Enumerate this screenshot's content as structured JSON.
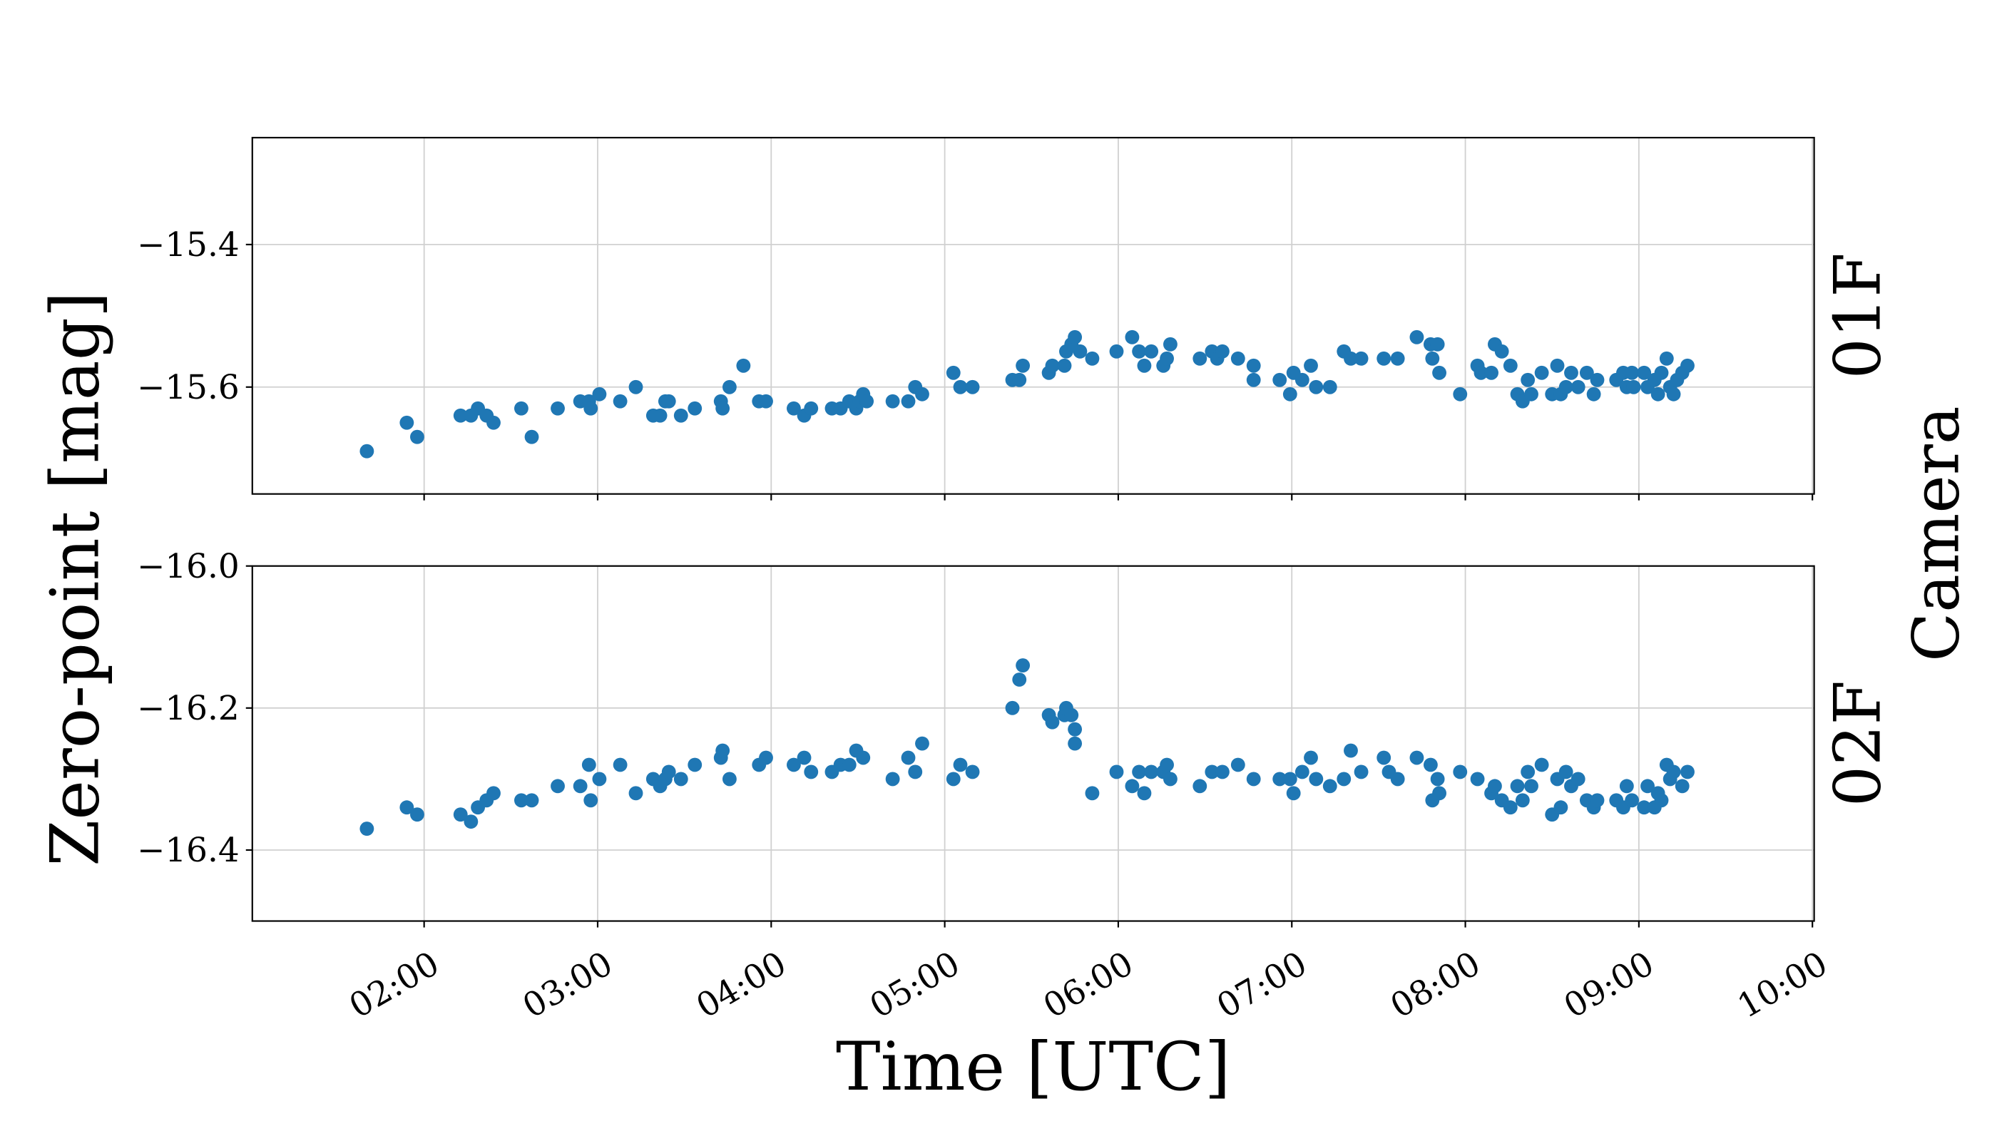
{
  "shared": {
    "xlabel": "Time [UTC]",
    "ylabel": "Zero-point [mag]",
    "facet_title": "Camera"
  },
  "chart_data": [
    {
      "type": "scatter",
      "facet_label": "01F",
      "color": "#1f77b4",
      "grid": true,
      "xlim": [
        1.01,
        10.01
      ],
      "xticks": [
        2,
        3,
        4,
        5,
        6,
        7,
        8,
        9,
        10
      ],
      "ylim": [
        -15.75,
        -15.25
      ],
      "yticks": [
        {
          "value": -15.4,
          "label": "−15.4"
        },
        {
          "value": -15.6,
          "label": "−15.6"
        }
      ],
      "x": [
        1.67,
        1.9,
        1.96,
        2.21,
        2.27,
        2.31,
        2.36,
        2.4,
        2.56,
        2.62,
        2.77,
        2.9,
        2.95,
        2.96,
        3.01,
        3.13,
        3.22,
        3.32,
        3.36,
        3.39,
        3.41,
        3.48,
        3.56,
        3.71,
        3.72,
        3.76,
        3.84,
        3.93,
        3.97,
        4.13,
        4.19,
        4.23,
        4.35,
        4.4,
        4.45,
        4.49,
        4.51,
        4.53,
        4.55,
        4.7,
        4.79,
        4.83,
        4.87,
        5.05,
        5.09,
        5.16,
        5.39,
        5.43,
        5.45,
        5.6,
        5.62,
        5.69,
        5.7,
        5.73,
        5.75,
        5.78,
        5.85,
        5.99,
        6.08,
        6.12,
        6.15,
        6.19,
        6.26,
        6.28,
        6.3,
        6.47,
        6.54,
        6.57,
        6.6,
        6.69,
        6.78,
        6.78,
        6.93,
        6.99,
        7.01,
        7.06,
        7.11,
        7.14,
        7.22,
        7.3,
        7.34,
        7.4,
        7.53,
        7.61,
        7.72,
        7.8,
        7.81,
        7.84,
        7.85,
        7.97,
        8.07,
        8.09,
        8.15,
        8.17,
        8.21,
        8.26,
        8.3,
        8.33,
        8.36,
        8.38,
        8.44,
        8.5,
        8.53,
        8.55,
        8.58,
        8.61,
        8.65,
        8.7,
        8.74,
        8.76,
        8.87,
        8.91,
        8.93,
        8.96,
        8.97,
        9.03,
        9.05,
        9.09,
        9.11,
        9.13,
        9.16,
        9.18,
        9.2,
        9.22,
        9.25,
        9.28
      ],
      "values": [
        -15.69,
        -15.65,
        -15.67,
        -15.64,
        -15.64,
        -15.63,
        -15.64,
        -15.65,
        -15.63,
        -15.67,
        -15.63,
        -15.62,
        -15.62,
        -15.63,
        -15.61,
        -15.62,
        -15.6,
        -15.64,
        -15.64,
        -15.62,
        -15.62,
        -15.64,
        -15.63,
        -15.62,
        -15.63,
        -15.6,
        -15.57,
        -15.62,
        -15.62,
        -15.63,
        -15.64,
        -15.63,
        -15.63,
        -15.63,
        -15.62,
        -15.63,
        -15.62,
        -15.61,
        -15.62,
        -15.62,
        -15.62,
        -15.6,
        -15.61,
        -15.58,
        -15.6,
        -15.6,
        -15.59,
        -15.59,
        -15.57,
        -15.58,
        -15.57,
        -15.57,
        -15.55,
        -15.54,
        -15.53,
        -15.55,
        -15.56,
        -15.55,
        -15.53,
        -15.55,
        -15.57,
        -15.55,
        -15.57,
        -15.56,
        -15.54,
        -15.56,
        -15.55,
        -15.56,
        -15.55,
        -15.56,
        -15.57,
        -15.59,
        -15.59,
        -15.61,
        -15.58,
        -15.59,
        -15.57,
        -15.6,
        -15.6,
        -15.55,
        -15.56,
        -15.56,
        -15.56,
        -15.56,
        -15.53,
        -15.54,
        -15.56,
        -15.54,
        -15.58,
        -15.61,
        -15.57,
        -15.58,
        -15.58,
        -15.54,
        -15.55,
        -15.57,
        -15.61,
        -15.62,
        -15.59,
        -15.61,
        -15.58,
        -15.61,
        -15.57,
        -15.61,
        -15.6,
        -15.58,
        -15.6,
        -15.58,
        -15.61,
        -15.59,
        -15.59,
        -15.58,
        -15.6,
        -15.58,
        -15.6,
        -15.58,
        -15.6,
        -15.59,
        -15.61,
        -15.58,
        -15.56,
        -15.6,
        -15.61,
        -15.59,
        -15.58,
        -15.57
      ]
    },
    {
      "type": "scatter",
      "facet_label": "02F",
      "color": "#1f77b4",
      "grid": true,
      "xlim": [
        1.01,
        10.01
      ],
      "xticks": [
        {
          "value": 2,
          "label": "02:00"
        },
        {
          "value": 3,
          "label": "03:00"
        },
        {
          "value": 4,
          "label": "04:00"
        },
        {
          "value": 5,
          "label": "05:00"
        },
        {
          "value": 6,
          "label": "06:00"
        },
        {
          "value": 7,
          "label": "07:00"
        },
        {
          "value": 8,
          "label": "08:00"
        },
        {
          "value": 9,
          "label": "09:00"
        },
        {
          "value": 10,
          "label": "10:00"
        }
      ],
      "ylim": [
        -16.5,
        -16.0
      ],
      "yticks": [
        {
          "value": -16.0,
          "label": "−16.0"
        },
        {
          "value": -16.2,
          "label": "−16.2"
        },
        {
          "value": -16.4,
          "label": "−16.4"
        }
      ],
      "x": [
        1.67,
        1.9,
        1.96,
        2.21,
        2.27,
        2.31,
        2.36,
        2.4,
        2.56,
        2.62,
        2.77,
        2.9,
        2.95,
        2.96,
        3.01,
        3.13,
        3.22,
        3.32,
        3.36,
        3.39,
        3.41,
        3.48,
        3.56,
        3.71,
        3.72,
        3.76,
        3.93,
        3.97,
        4.13,
        4.19,
        4.23,
        4.35,
        4.4,
        4.45,
        4.49,
        4.53,
        4.7,
        4.79,
        4.83,
        4.87,
        5.05,
        5.09,
        5.16,
        5.39,
        5.43,
        5.45,
        5.6,
        5.62,
        5.69,
        5.7,
        5.73,
        5.75,
        5.75,
        5.85,
        5.99,
        6.08,
        6.12,
        6.15,
        6.19,
        6.26,
        6.28,
        6.3,
        6.47,
        6.54,
        6.6,
        6.69,
        6.78,
        6.93,
        6.99,
        7.01,
        7.06,
        7.11,
        7.14,
        7.22,
        7.3,
        7.34,
        7.4,
        7.53,
        7.56,
        7.61,
        7.72,
        7.8,
        7.81,
        7.84,
        7.85,
        7.97,
        8.07,
        8.15,
        8.17,
        8.21,
        8.26,
        8.3,
        8.33,
        8.36,
        8.38,
        8.44,
        8.5,
        8.53,
        8.55,
        8.58,
        8.61,
        8.65,
        8.7,
        8.74,
        8.76,
        8.87,
        8.91,
        8.93,
        8.96,
        9.03,
        9.05,
        9.09,
        9.11,
        9.13,
        9.16,
        9.18,
        9.2,
        9.25,
        9.28
      ],
      "values": [
        -16.37,
        -16.34,
        -16.35,
        -16.35,
        -16.36,
        -16.34,
        -16.33,
        -16.32,
        -16.33,
        -16.33,
        -16.31,
        -16.31,
        -16.28,
        -16.33,
        -16.3,
        -16.28,
        -16.32,
        -16.3,
        -16.31,
        -16.3,
        -16.29,
        -16.3,
        -16.28,
        -16.27,
        -16.26,
        -16.3,
        -16.28,
        -16.27,
        -16.28,
        -16.27,
        -16.29,
        -16.29,
        -16.28,
        -16.28,
        -16.26,
        -16.27,
        -16.3,
        -16.27,
        -16.29,
        -16.25,
        -16.3,
        -16.28,
        -16.29,
        -16.2,
        -16.16,
        -16.14,
        -16.21,
        -16.22,
        -16.21,
        -16.2,
        -16.21,
        -16.23,
        -16.25,
        -16.32,
        -16.29,
        -16.31,
        -16.29,
        -16.32,
        -16.29,
        -16.29,
        -16.28,
        -16.3,
        -16.31,
        -16.29,
        -16.29,
        -16.28,
        -16.3,
        -16.3,
        -16.3,
        -16.32,
        -16.29,
        -16.27,
        -16.3,
        -16.31,
        -16.3,
        -16.26,
        -16.29,
        -16.27,
        -16.29,
        -16.3,
        -16.27,
        -16.28,
        -16.33,
        -16.3,
        -16.32,
        -16.29,
        -16.3,
        -16.32,
        -16.31,
        -16.33,
        -16.34,
        -16.31,
        -16.33,
        -16.29,
        -16.31,
        -16.28,
        -16.35,
        -16.3,
        -16.34,
        -16.29,
        -16.31,
        -16.3,
        -16.33,
        -16.34,
        -16.33,
        -16.33,
        -16.34,
        -16.31,
        -16.33,
        -16.34,
        -16.31,
        -16.34,
        -16.32,
        -16.33,
        -16.28,
        -16.3,
        -16.29,
        -16.31,
        -16.29
      ]
    }
  ]
}
